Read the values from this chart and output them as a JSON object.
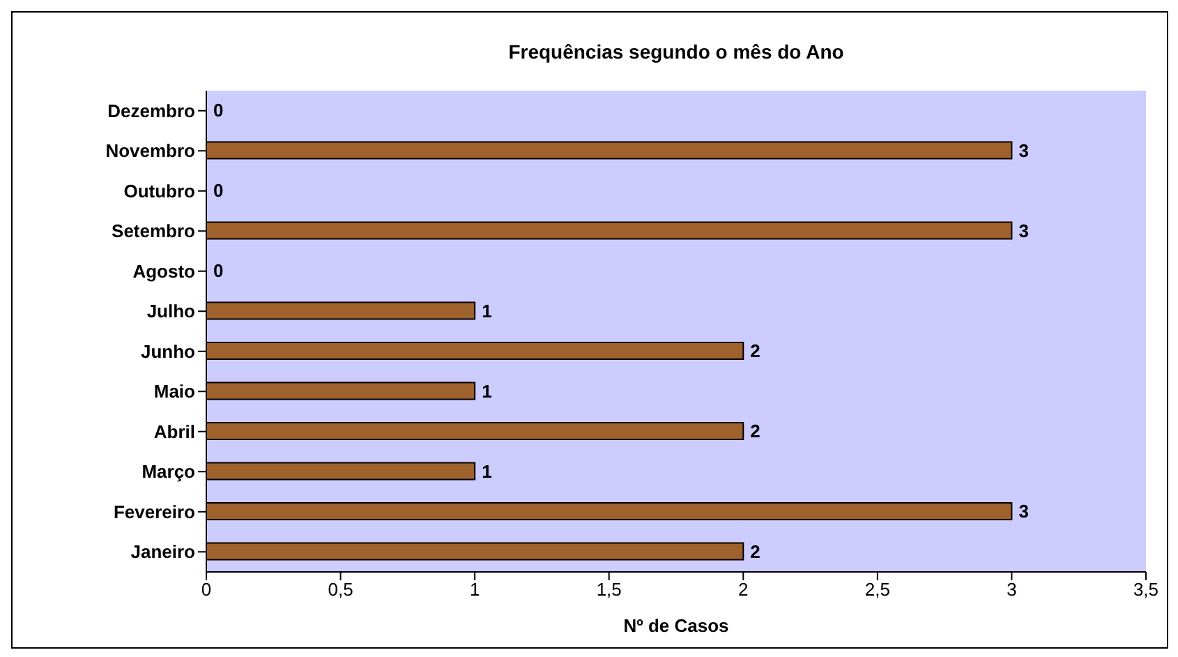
{
  "chart_data": {
    "type": "bar",
    "orientation": "horizontal",
    "title": "Frequências segundo o mês do Ano",
    "xlabel": "Nº de Casos",
    "categories": [
      "Dezembro",
      "Novembro",
      "Outubro",
      "Setembro",
      "Agosto",
      "Julho",
      "Junho",
      "Maio",
      "Abril",
      "Março",
      "Fevereiro",
      "Janeiro"
    ],
    "values": [
      0,
      3,
      0,
      3,
      0,
      1,
      2,
      1,
      2,
      1,
      3,
      2
    ],
    "color": "#a0622d",
    "xlim": [
      0,
      3.5
    ],
    "xticks": [
      0,
      {
        "value": 0.5,
        "label": "0,5"
      },
      1,
      {
        "value": 1.5,
        "label": "1,5"
      },
      2,
      {
        "value": 2.5,
        "label": "2,5"
      },
      3,
      {
        "value": 3.5,
        "label": "3,5"
      }
    ],
    "data_labels": true
  }
}
